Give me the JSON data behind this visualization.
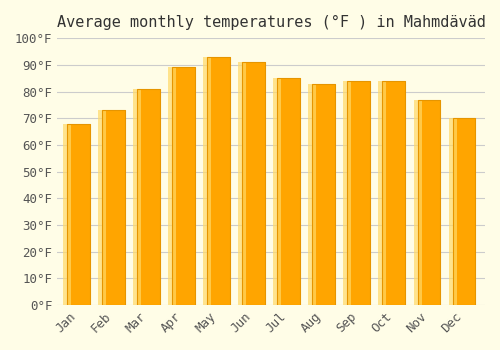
{
  "title": "Average monthly temperatures (°F ) in Mahmdäväd",
  "months": [
    "Jan",
    "Feb",
    "Mar",
    "Apr",
    "May",
    "Jun",
    "Jul",
    "Aug",
    "Sep",
    "Oct",
    "Nov",
    "Dec"
  ],
  "values": [
    68,
    73,
    81,
    89,
    93,
    91,
    85,
    83,
    84,
    84,
    77,
    70
  ],
  "bar_color": "#FFA500",
  "bar_edge_color": "#E69500",
  "background_color": "#FFFDE7",
  "grid_color": "#CCCCCC",
  "ylim": [
    0,
    100
  ],
  "ytick_step": 10,
  "title_fontsize": 11,
  "tick_fontsize": 9
}
